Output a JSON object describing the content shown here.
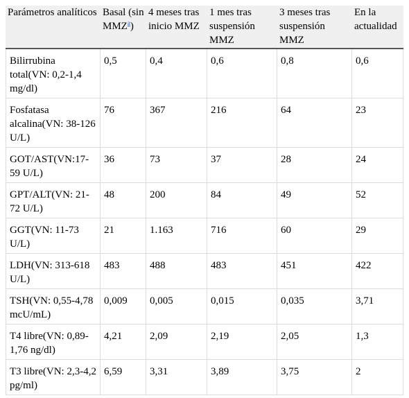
{
  "table": {
    "headers": {
      "parametro": "Parámetros analíticos",
      "basal_prefix": "Basal (sin MMZ",
      "basal_note": "a",
      "basal_suffix": ")",
      "m4": "4 meses tras inicio MMZ",
      "m1s": "1 mes tras suspensión MMZ",
      "m3s": "3 meses tras suspensión MMZ",
      "actual": "En la actualidad"
    },
    "rows": [
      {
        "param": "Bilirrubina total(VN: 0,2-1,4 mg/dl)",
        "basal": "0,5",
        "m4": "0,4",
        "m1s": "0,6",
        "m3s": "0,8",
        "actual": "0,6"
      },
      {
        "param": "Fosfatasa alcalina(VN: 38-126 U/L)",
        "basal": "76",
        "m4": "367",
        "m1s": "216",
        "m3s": "64",
        "actual": "23"
      },
      {
        "param": "GOT/AST(VN:17-59 U/L)",
        "basal": "36",
        "m4": "73",
        "m1s": "37",
        "m3s": "28",
        "actual": "24"
      },
      {
        "param": "GPT/ALT(VN: 21-72 U/L)",
        "basal": "48",
        "m4": "200",
        "m1s": "84",
        "m3s": "49",
        "actual": "52"
      },
      {
        "param": "GGT(VN: 11-73 U/L)",
        "basal": "21",
        "m4": "1.163",
        "m1s": "716",
        "m3s": "60",
        "actual": "29"
      },
      {
        "param": "LDH(VN: 313-618 U/L)",
        "basal": "483",
        "m4": "488",
        "m1s": "483",
        "m3s": "451",
        "actual": "422"
      },
      {
        "param": "TSH(VN: 0,55-4,78 mcU/mL)",
        "basal": "0,009",
        "m4": "0,005",
        "m1s": "0,015",
        "m3s": "0,035",
        "actual": "3,71"
      },
      {
        "param": "T4 libre(VN: 0,89-1,76 ng/dl)",
        "basal": "4,21",
        "m4": "2,09",
        "m1s": "2,19",
        "m3s": "2,05",
        "actual": "1,3"
      },
      {
        "param": "T3 libre(VN: 2,3-4,2 pg/ml)",
        "basal": "6,59",
        "m4": "3,31",
        "m1s": "3,89",
        "m3s": "3,75",
        "actual": "2"
      }
    ]
  }
}
